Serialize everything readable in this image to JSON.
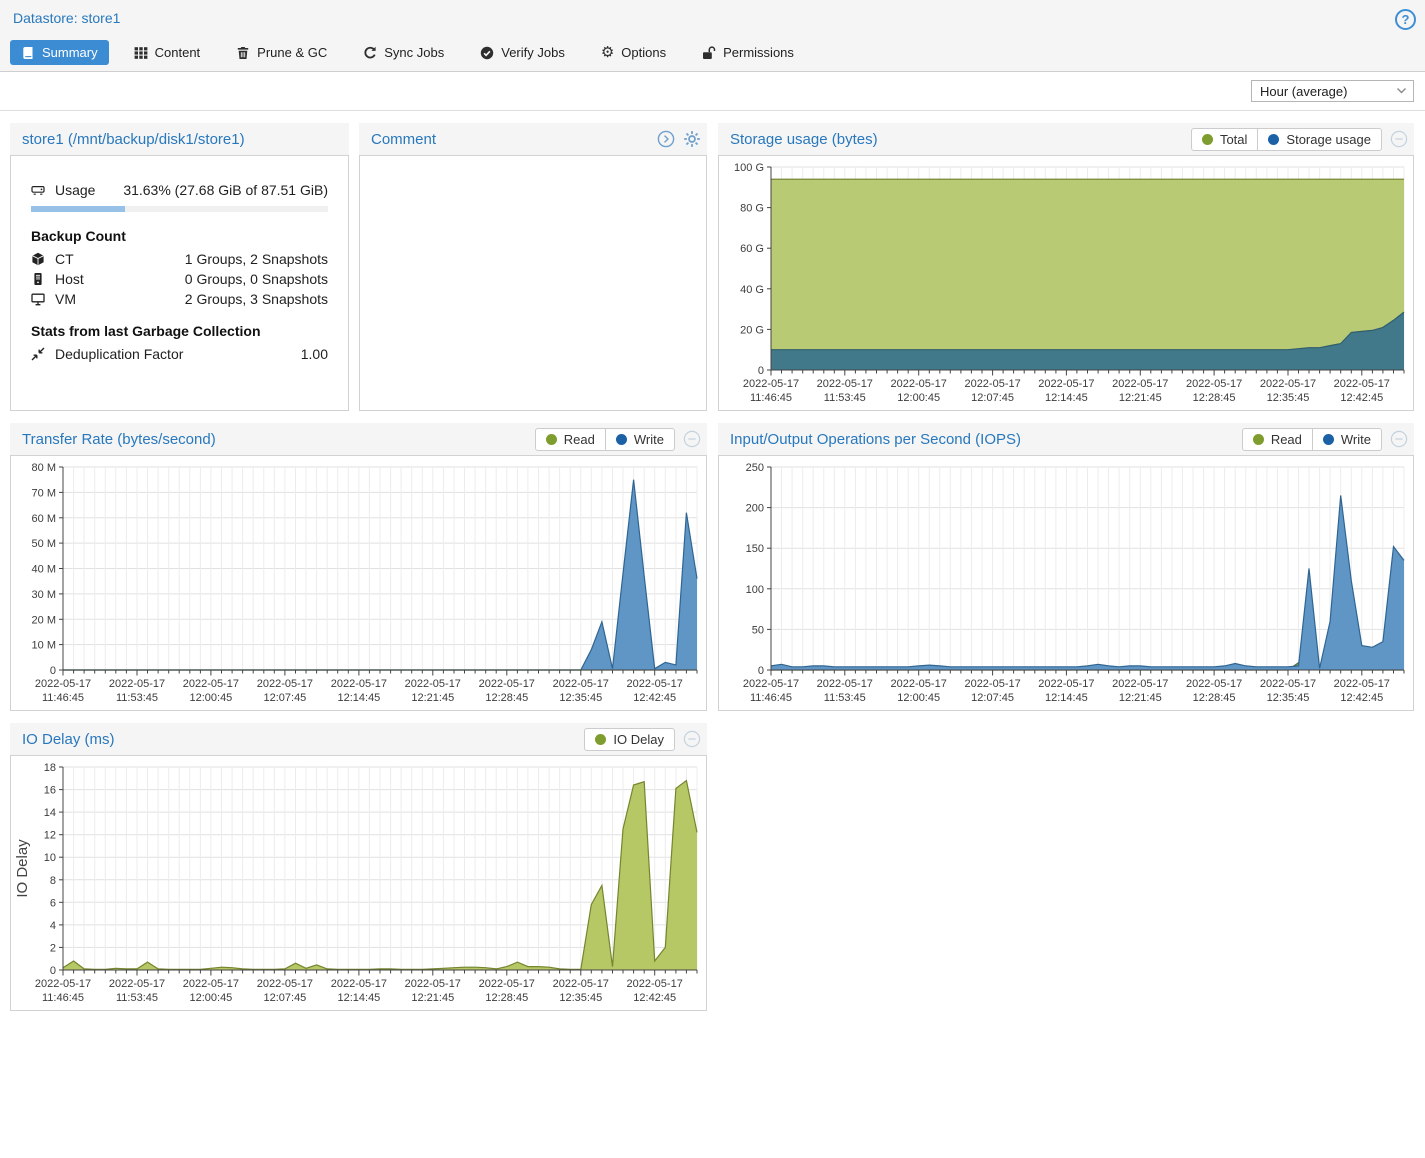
{
  "window": {
    "title": "Datastore: store1",
    "help_icon": "?"
  },
  "tabs": [
    {
      "label": "Summary",
      "icon": "book-icon",
      "active": true
    },
    {
      "label": "Content",
      "icon": "grid-icon",
      "active": false
    },
    {
      "label": "Prune & GC",
      "icon": "trash-icon",
      "active": false
    },
    {
      "label": "Sync Jobs",
      "icon": "sync-icon",
      "active": false
    },
    {
      "label": "Verify Jobs",
      "icon": "check-circle-icon",
      "active": false
    },
    {
      "label": "Options",
      "icon": "gear-icon",
      "active": false
    },
    {
      "label": "Permissions",
      "icon": "unlock-icon",
      "active": false
    }
  ],
  "toolbar": {
    "timeframe_selected": "Hour (average)"
  },
  "datastore_panel": {
    "title": "store1 (/mnt/backup/disk1/store1)",
    "usage": {
      "label": "Usage",
      "value": "31.63% (27.68 GiB of 87.51 GiB)",
      "percent": 31.63
    },
    "backup_count": {
      "heading": "Backup Count",
      "rows": [
        {
          "icon": "cube-icon",
          "label": "CT",
          "value": "1 Groups, 2 Snapshots"
        },
        {
          "icon": "server-icon",
          "label": "Host",
          "value": "0 Groups, 0 Snapshots"
        },
        {
          "icon": "desktop-icon",
          "label": "VM",
          "value": "2 Groups, 3 Snapshots"
        }
      ]
    },
    "gc_stats": {
      "heading": "Stats from last Garbage Collection",
      "rows": [
        {
          "icon": "compress-icon",
          "label": "Deduplication Factor",
          "value": "1.00"
        }
      ]
    }
  },
  "comment_panel": {
    "title": "Comment"
  },
  "colors": {
    "accent": "#2878bd",
    "tab_active_bg": "#3b8cd3",
    "legend_green": "#7f9d2f",
    "legend_blue": "#1c60a6"
  },
  "chart_data": [
    {
      "id": "storage",
      "type": "area",
      "title": "Storage usage (bytes)",
      "legend": [
        {
          "name": "Total",
          "color": "#7f9d2f"
        },
        {
          "name": "Storage usage",
          "color": "#1c60a6"
        }
      ],
      "x_date": "2022-05-17",
      "x_times": [
        "11:46:45",
        "11:53:45",
        "12:00:45",
        "12:07:45",
        "12:14:45",
        "12:21:45",
        "12:28:45",
        "12:35:45",
        "12:42:45"
      ],
      "x_label_every": 7,
      "ylim": [
        0,
        100
      ],
      "yticks": [
        "0",
        "20 G",
        "40 G",
        "60 G",
        "80 G",
        "100 G"
      ],
      "series": [
        {
          "name": "Total",
          "fill": "#b9ca74",
          "line": "#6f7f2e",
          "values": [
            94,
            94,
            94,
            94,
            94,
            94,
            94,
            94,
            94,
            94,
            94,
            94,
            94,
            94,
            94,
            94,
            94,
            94,
            94,
            94,
            94,
            94,
            94,
            94,
            94,
            94,
            94,
            94,
            94,
            94,
            94,
            94,
            94,
            94,
            94,
            94,
            94,
            94,
            94,
            94,
            94,
            94,
            94,
            94,
            94,
            94,
            94,
            94,
            94,
            94,
            94,
            94,
            94,
            94,
            94,
            94,
            94,
            94,
            94,
            94,
            94
          ]
        },
        {
          "name": "Storage usage",
          "fill": "#41798b",
          "line": "#2f5d6b",
          "values": [
            10,
            10,
            10,
            10,
            10,
            10,
            10,
            10,
            10,
            10,
            10,
            10,
            10,
            10,
            10,
            10,
            10,
            10,
            10,
            10,
            10,
            10,
            10,
            10,
            10,
            10,
            10,
            10,
            10,
            10,
            10,
            10,
            10,
            10,
            10,
            10,
            10,
            10,
            10,
            10,
            10,
            10,
            10,
            10,
            10,
            10,
            10,
            10,
            10,
            10,
            10.5,
            11,
            11,
            12,
            13,
            18.5,
            19,
            19.5,
            21,
            24.5,
            28.5
          ]
        }
      ]
    },
    {
      "id": "transfer",
      "type": "area",
      "title": "Transfer Rate (bytes/second)",
      "legend": [
        {
          "name": "Read",
          "color": "#7f9d2f"
        },
        {
          "name": "Write",
          "color": "#1c60a6"
        }
      ],
      "x_date": "2022-05-17",
      "x_times": [
        "11:46:45",
        "11:53:45",
        "12:00:45",
        "12:07:45",
        "12:14:45",
        "12:21:45",
        "12:28:45",
        "12:35:45",
        "12:42:45"
      ],
      "x_label_every": 7,
      "ylim": [
        0,
        80
      ],
      "yticks": [
        "0",
        "10 M",
        "20 M",
        "30 M",
        "40 M",
        "50 M",
        "60 M",
        "70 M",
        "80 M"
      ],
      "series": [
        {
          "name": "Read",
          "fill": "#b9ca74",
          "line": "#6f7f2e",
          "values": [
            0,
            0,
            0,
            0,
            0,
            0,
            0,
            0,
            0,
            0,
            0,
            0,
            0,
            0,
            0,
            0,
            0,
            0,
            0,
            0,
            0,
            0,
            0,
            0,
            0,
            0,
            0,
            0,
            0,
            0,
            0,
            0,
            0,
            0,
            0,
            0,
            0,
            0,
            0,
            0,
            0,
            0,
            0,
            0,
            0,
            0,
            0,
            0,
            0,
            0,
            0,
            0,
            0,
            0,
            0,
            0,
            0,
            0,
            0,
            0,
            0
          ]
        },
        {
          "name": "Write",
          "fill": "#6096c6",
          "line": "#2f6591",
          "values": [
            0,
            0,
            0,
            0,
            0,
            0,
            0,
            0,
            0,
            0,
            0,
            0,
            0,
            0,
            0,
            0,
            0,
            0,
            0,
            0,
            0,
            0,
            0,
            0,
            0,
            0,
            0,
            0,
            0,
            0,
            0,
            0,
            0,
            0,
            0,
            0,
            0,
            0,
            0,
            0,
            0,
            0,
            0,
            0,
            0,
            0,
            0,
            0,
            0,
            0,
            8,
            19,
            0.5,
            38,
            75,
            37,
            0.5,
            3,
            2,
            62,
            36
          ]
        }
      ]
    },
    {
      "id": "iops",
      "type": "area",
      "title": "Input/Output Operations per Second (IOPS)",
      "legend": [
        {
          "name": "Read",
          "color": "#7f9d2f"
        },
        {
          "name": "Write",
          "color": "#1c60a6"
        }
      ],
      "x_date": "2022-05-17",
      "x_times": [
        "11:46:45",
        "11:53:45",
        "12:00:45",
        "12:07:45",
        "12:14:45",
        "12:21:45",
        "12:28:45",
        "12:35:45",
        "12:42:45"
      ],
      "x_label_every": 7,
      "ylim": [
        0,
        250
      ],
      "yticks": [
        "0",
        "50",
        "100",
        "150",
        "200",
        "250"
      ],
      "series": [
        {
          "name": "Read",
          "fill": "#7da55f",
          "line": "#4f7037",
          "values": [
            0,
            0,
            0,
            0,
            0,
            0,
            0,
            0,
            0,
            0,
            0,
            0,
            0,
            0,
            0,
            0,
            0,
            0,
            0,
            0,
            0,
            0,
            0,
            0,
            0,
            0,
            0,
            0,
            0,
            0,
            0,
            0,
            0,
            0,
            0,
            0,
            0,
            0,
            0,
            0,
            0,
            0,
            0,
            0,
            0,
            0,
            0,
            0,
            0,
            0,
            9,
            3,
            0,
            0,
            0,
            0,
            0,
            0,
            0,
            0,
            0
          ]
        },
        {
          "name": "Write",
          "fill": "#6096c6",
          "line": "#2f6591",
          "values": [
            5,
            7,
            4,
            4,
            5,
            5,
            4,
            4,
            4,
            4,
            4,
            4,
            4,
            4,
            5,
            6,
            5,
            4,
            4,
            4,
            4,
            4,
            4,
            4,
            4,
            4,
            4,
            4,
            4,
            4,
            5,
            7,
            5,
            4,
            5,
            5,
            4,
            4,
            4,
            4,
            4,
            4,
            4,
            5,
            8,
            5,
            4,
            4,
            4,
            4,
            5,
            125,
            2,
            60,
            215,
            110,
            30,
            28,
            35,
            152,
            135
          ]
        }
      ]
    },
    {
      "id": "iodelay",
      "type": "area",
      "title": "IO Delay (ms)",
      "ylabel": "IO Delay",
      "legend": [
        {
          "name": "IO Delay",
          "color": "#7f9d2f"
        }
      ],
      "x_date": "2022-05-17",
      "x_times": [
        "11:46:45",
        "11:53:45",
        "12:00:45",
        "12:07:45",
        "12:14:45",
        "12:21:45",
        "12:28:45",
        "12:35:45",
        "12:42:45"
      ],
      "x_label_every": 7,
      "ylim": [
        0,
        18
      ],
      "yticks": [
        "0",
        "2",
        "4",
        "6",
        "8",
        "10",
        "12",
        "14",
        "16",
        "18"
      ],
      "series": [
        {
          "name": "IO Delay",
          "fill": "#b6c765",
          "line": "#74862e",
          "values": [
            0.2,
            0.8,
            0.1,
            0.05,
            0.05,
            0.15,
            0.1,
            0.1,
            0.7,
            0.1,
            0.05,
            0.05,
            0.05,
            0.05,
            0.15,
            0.25,
            0.2,
            0.1,
            0.05,
            0.05,
            0.05,
            0.1,
            0.6,
            0.15,
            0.45,
            0.1,
            0.05,
            0.05,
            0.05,
            0.05,
            0.1,
            0.1,
            0.05,
            0.05,
            0.05,
            0.1,
            0.15,
            0.2,
            0.25,
            0.25,
            0.2,
            0.1,
            0.3,
            0.7,
            0.3,
            0.3,
            0.25,
            0.1,
            0.05,
            0.05,
            5.8,
            7.5,
            0.3,
            12.5,
            16.4,
            16.7,
            0.8,
            2,
            16.1,
            16.8,
            12.2
          ]
        }
      ]
    }
  ]
}
